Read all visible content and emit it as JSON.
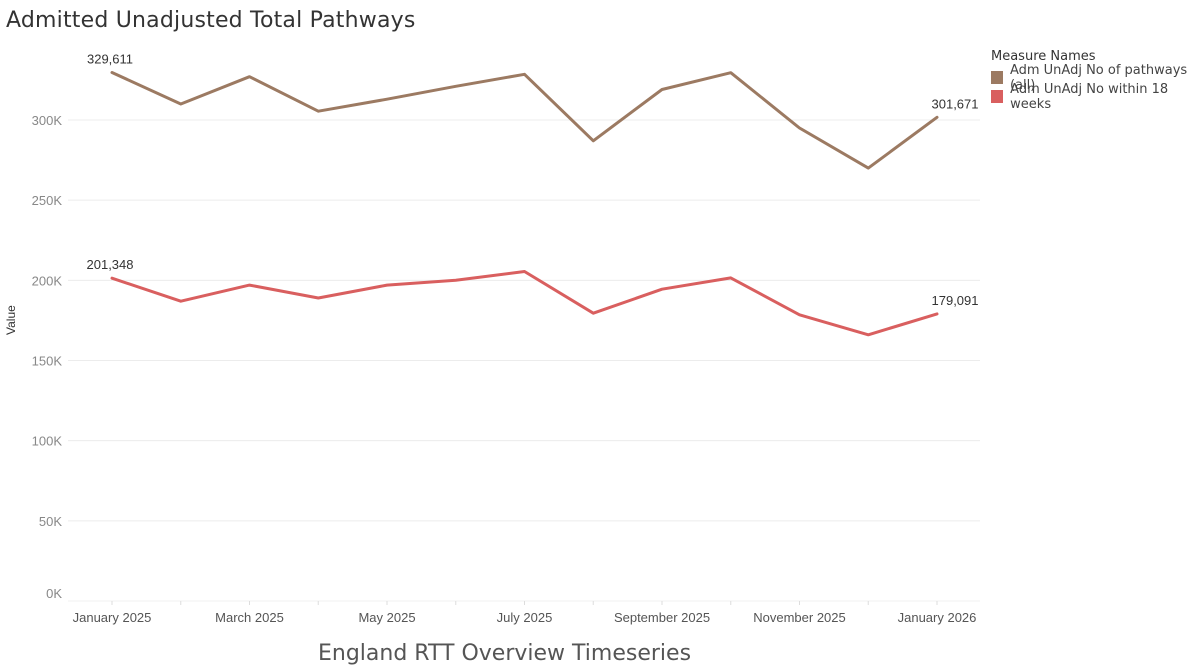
{
  "chart_data": {
    "type": "line",
    "title": "Admitted Unadjusted Total Pathways",
    "caption": "England RTT Overview Timeseries",
    "xlabel": "",
    "ylabel": "Value",
    "ylim": [
      0,
      340000
    ],
    "y_ticks": [
      0,
      50000,
      100000,
      150000,
      200000,
      250000,
      300000
    ],
    "y_tick_labels": [
      "0K",
      "50K",
      "100K",
      "150K",
      "200K",
      "250K",
      "300K"
    ],
    "x": [
      "2025-01",
      "2025-02",
      "2025-03",
      "2025-04",
      "2025-05",
      "2025-06",
      "2025-07",
      "2025-08",
      "2025-09",
      "2025-10",
      "2025-11",
      "2025-12",
      "2026-01"
    ],
    "x_tick_labels": [
      "January 2025",
      "March 2025",
      "May 2025",
      "July 2025",
      "September 2025",
      "November 2025",
      "January 2026"
    ],
    "legend_title": "Measure Names",
    "legend_position": "top-right",
    "grid": true,
    "series": [
      {
        "name": "Adm UnAdj No of pathways (all)",
        "color": "#9c7a62",
        "values": [
          329611,
          310000,
          327000,
          305500,
          313000,
          321000,
          328500,
          287000,
          319000,
          329500,
          295000,
          270000,
          301671
        ],
        "first_label": "329,611",
        "last_label": "301,671"
      },
      {
        "name": "Adm UnAdj No within 18 weeks",
        "color": "#d95f5f",
        "values": [
          201348,
          187000,
          197000,
          189000,
          197000,
          200000,
          205500,
          179500,
          194500,
          201500,
          178500,
          166000,
          179091
        ],
        "first_label": "201,348",
        "last_label": "179,091"
      }
    ]
  }
}
